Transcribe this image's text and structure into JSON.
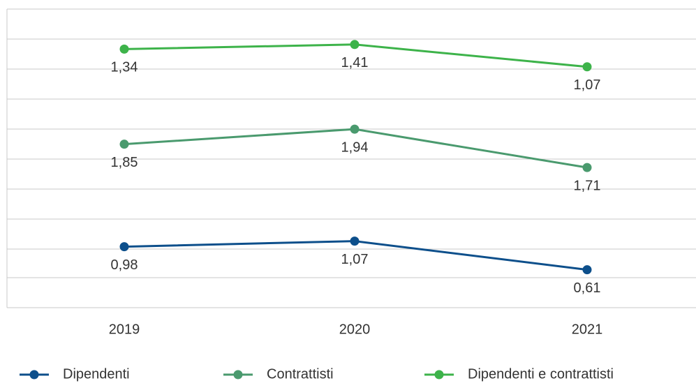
{
  "chart_data": {
    "type": "line",
    "categories": [
      "2019",
      "2020",
      "2021"
    ],
    "series": [
      {
        "name": "Dipendenti",
        "color": "#0d4f8b",
        "ylim": [
          0,
          4.8
        ],
        "values": [
          0.98,
          1.07,
          0.61
        ],
        "value_labels": [
          "0,98",
          "1,07",
          "0,61"
        ]
      },
      {
        "name": "Contrattisti",
        "color": "#4a9a6e",
        "ylim": [
          0.87,
          2.66
        ],
        "values": [
          1.85,
          1.94,
          1.71
        ],
        "value_labels": [
          "1,85",
          "1,94",
          "1,71"
        ]
      },
      {
        "name": "Dipendenti e contrattisti",
        "color": "#3db34a",
        "ylim": [
          -2.6,
          1.95
        ],
        "values": [
          1.34,
          1.41,
          1.07
        ],
        "value_labels": [
          "1,34",
          "1,41",
          "1,07"
        ]
      }
    ]
  }
}
